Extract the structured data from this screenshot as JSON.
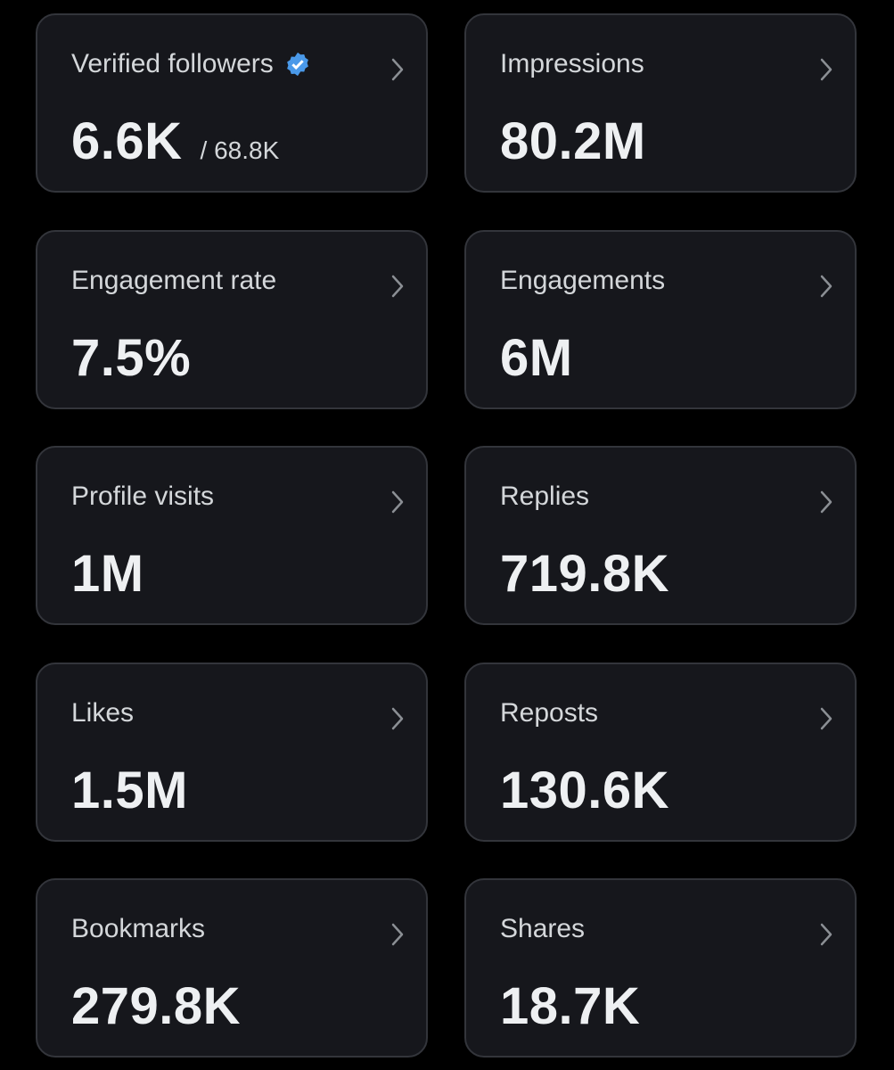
{
  "cards": [
    {
      "label": "Verified followers",
      "value": "6.6K",
      "secondary": "/ 68.8K"
    },
    {
      "label": "Impressions",
      "value": "80.2M"
    },
    {
      "label": "Engagement rate",
      "value": "7.5%"
    },
    {
      "label": "Engagements",
      "value": "6M"
    },
    {
      "label": "Profile visits",
      "value": "1M"
    },
    {
      "label": "Replies",
      "value": "719.8K"
    },
    {
      "label": "Likes",
      "value": "1.5M"
    },
    {
      "label": "Reposts",
      "value": "130.6K"
    },
    {
      "label": "Bookmarks",
      "value": "279.8K"
    },
    {
      "label": "Shares",
      "value": "18.7K"
    }
  ]
}
